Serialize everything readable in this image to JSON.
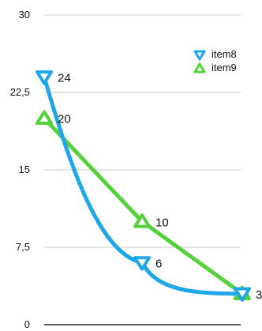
{
  "chart_data": {
    "type": "line",
    "x": [
      0,
      1,
      2,
      3
    ],
    "ylim": [
      0,
      30
    ],
    "yticks": [
      "0",
      "7,5",
      "15",
      "22,5",
      "30"
    ],
    "ytick_values": [
      0,
      7.5,
      15,
      22.5,
      30
    ],
    "grid": true,
    "legend_position": "top-right",
    "series": [
      {
        "name": "item8",
        "values": [
          24,
          null,
          6,
          3
        ],
        "labels": [
          "24",
          "",
          "6",
          "3"
        ],
        "color": "#1EA7E8",
        "marker": "triangle-down",
        "smooth": true
      },
      {
        "name": "item9",
        "values": [
          20,
          null,
          10,
          3
        ],
        "labels": [
          "20",
          "",
          "10",
          ""
        ],
        "color": "#56D13A",
        "marker": "triangle-up",
        "smooth": false
      }
    ]
  }
}
